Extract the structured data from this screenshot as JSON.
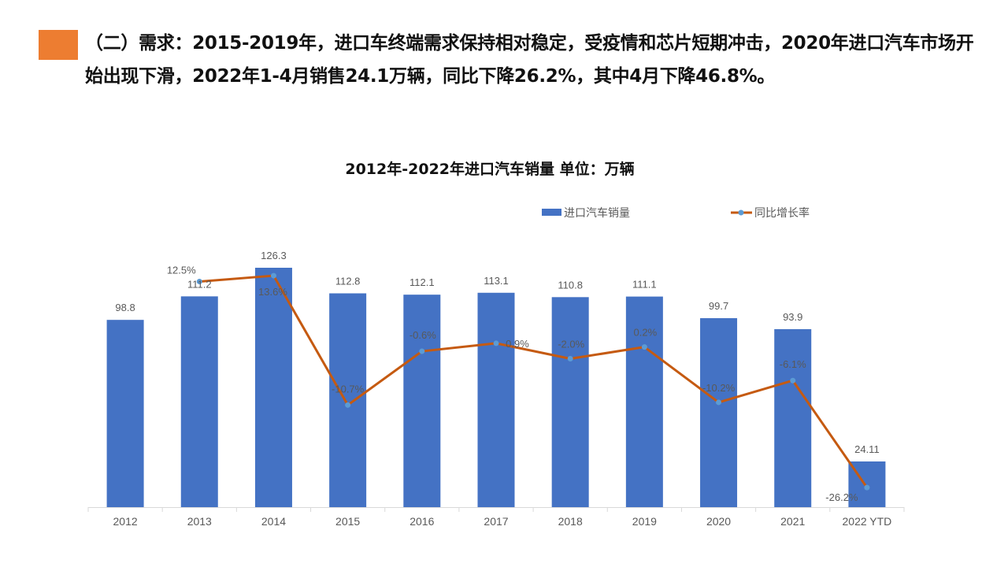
{
  "headline": "（二）需求：2015-2019年，进口车终端需求保持相对稳定，受疫情和芯片短期冲击，2020年进口汽车市场开始出现下滑，2022年1-4月销售24.1万辆，同比下降26.2%，其中4月下降46.8%。",
  "colors": {
    "accent": "#ED7D31",
    "bar": "#4472C4",
    "line": "#C55A11",
    "marker": "#5B9BD5"
  },
  "chart_data": {
    "type": "bar+line",
    "title": "2012年-2022年进口汽车销量  单位：万辆",
    "categories": [
      "2012",
      "2013",
      "2014",
      "2015",
      "2016",
      "2017",
      "2018",
      "2019",
      "2020",
      "2021",
      "2022 YTD"
    ],
    "series": [
      {
        "name": "进口汽车销量",
        "type": "bar",
        "axis": "primary",
        "values": [
          98.8,
          111.2,
          126.3,
          112.8,
          112.1,
          113.1,
          110.8,
          111.1,
          99.7,
          93.9,
          24.11
        ],
        "labels": [
          "98.8",
          "111.2",
          "126.3",
          "112.8",
          "112.1",
          "113.1",
          "110.8",
          "111.1",
          "99.7",
          "93.9",
          "24.11"
        ]
      },
      {
        "name": "同比增长率",
        "type": "line",
        "axis": "secondary",
        "values": [
          null,
          12.5,
          13.6,
          -10.7,
          -0.6,
          0.9,
          -2.0,
          0.2,
          -10.2,
          -6.1,
          -26.2
        ],
        "labels": [
          "",
          "12.5%",
          "13.6%",
          "-10.7%",
          "-0.6%",
          "0.9%",
          "-2.0%",
          "0.2%",
          "-10.2%",
          "-6.1%",
          "-26.2%"
        ]
      }
    ],
    "legend_position": "top",
    "grid": false
  }
}
